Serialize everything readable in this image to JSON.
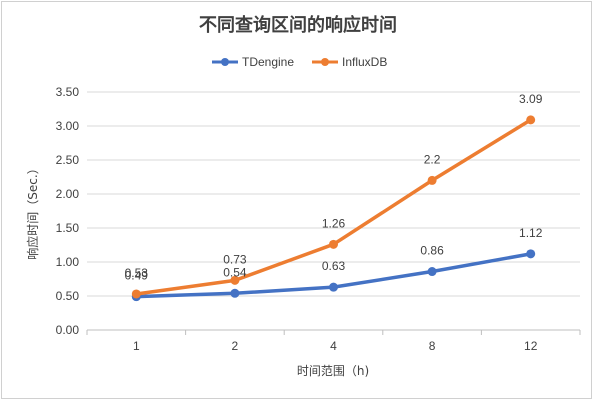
{
  "chart_data": {
    "type": "line",
    "title": "不同查询区间的响应时间",
    "xlabel": "时间范围（h)",
    "ylabel": "响应时间（Sec.）",
    "categories": [
      "1",
      "2",
      "4",
      "8",
      "12"
    ],
    "ylim": [
      0,
      3.5
    ],
    "ytick_labels": [
      "0.00",
      "0.50",
      "1.00",
      "1.50",
      "2.00",
      "2.50",
      "3.00",
      "3.50"
    ],
    "grid": true,
    "legend_position": "top",
    "series": [
      {
        "name": "TDengine",
        "color": "#4472C4",
        "values": [
          0.49,
          0.54,
          0.63,
          0.86,
          1.12
        ],
        "labels": [
          "0.49",
          "0.54",
          "0.63",
          "0.86",
          "1.12"
        ]
      },
      {
        "name": "InfluxDB",
        "color": "#ED7D31",
        "values": [
          0.53,
          0.73,
          1.26,
          2.2,
          3.09
        ],
        "labels": [
          "0.53",
          "0.73",
          "1.26",
          "2.2",
          "3.09"
        ]
      }
    ]
  }
}
